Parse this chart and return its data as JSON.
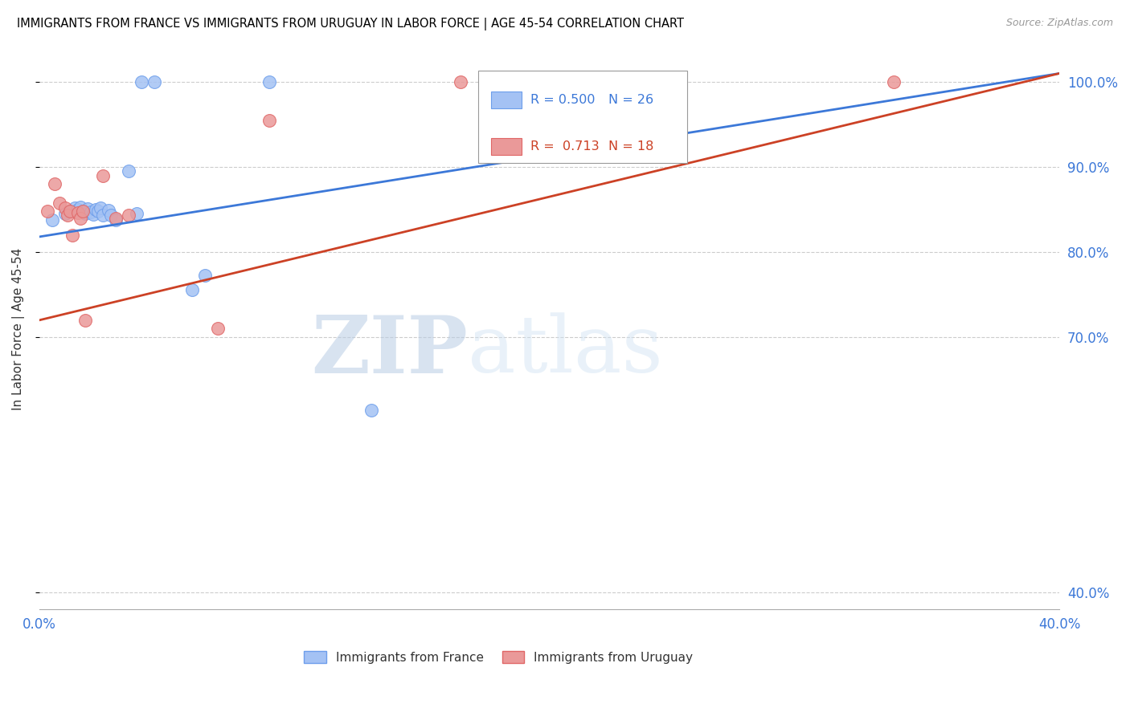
{
  "title": "IMMIGRANTS FROM FRANCE VS IMMIGRANTS FROM URUGUAY IN LABOR FORCE | AGE 45-54 CORRELATION CHART",
  "source": "Source: ZipAtlas.com",
  "ylabel": "In Labor Force | Age 45-54",
  "right_yticks": [
    0.4,
    0.7,
    0.8,
    0.9,
    1.0
  ],
  "right_yticklabels": [
    "40.0%",
    "70.0%",
    "80.0%",
    "90.0%",
    "100.0%"
  ],
  "xlim": [
    0.0,
    0.4
  ],
  "ylim": [
    0.38,
    1.04
  ],
  "france_R": 0.5,
  "france_N": 26,
  "uruguay_R": 0.713,
  "uruguay_N": 18,
  "france_color": "#a4c2f4",
  "uruguay_color": "#ea9999",
  "france_edge_color": "#6d9eeb",
  "uruguay_edge_color": "#e06666",
  "france_line_color": "#3c78d8",
  "uruguay_line_color": "#cc4125",
  "watermark_zip": "ZIP",
  "watermark_atlas": "atlas",
  "france_scatter_x": [
    0.005,
    0.01,
    0.012,
    0.014,
    0.015,
    0.016,
    0.017,
    0.018,
    0.019,
    0.02,
    0.021,
    0.022,
    0.023,
    0.024,
    0.025,
    0.027,
    0.028,
    0.03,
    0.035,
    0.038,
    0.04,
    0.045,
    0.06,
    0.065,
    0.09,
    0.13
  ],
  "france_scatter_y": [
    0.838,
    0.845,
    0.848,
    0.852,
    0.85,
    0.853,
    0.848,
    0.845,
    0.851,
    0.847,
    0.844,
    0.85,
    0.848,
    0.852,
    0.843,
    0.849,
    0.843,
    0.838,
    0.895,
    0.845,
    1.0,
    1.0,
    0.756,
    0.773,
    1.0,
    0.614
  ],
  "uruguay_scatter_x": [
    0.003,
    0.006,
    0.008,
    0.01,
    0.011,
    0.012,
    0.013,
    0.015,
    0.016,
    0.017,
    0.018,
    0.025,
    0.03,
    0.035,
    0.07,
    0.09,
    0.165,
    0.335
  ],
  "uruguay_scatter_y": [
    0.848,
    0.88,
    0.858,
    0.852,
    0.843,
    0.848,
    0.82,
    0.846,
    0.84,
    0.848,
    0.72,
    0.89,
    0.84,
    0.843,
    0.71,
    0.955,
    1.0,
    1.0
  ],
  "france_trend_x0": 0.0,
  "france_trend_x1": 0.4,
  "france_trend_y0": 0.818,
  "france_trend_y1": 1.01,
  "uruguay_trend_x0": 0.0,
  "uruguay_trend_x1": 0.4,
  "uruguay_trend_y0": 0.72,
  "uruguay_trend_y1": 1.01,
  "background_color": "#ffffff",
  "grid_color": "#cccccc",
  "tick_label_color": "#3c78d8",
  "title_color": "#000000",
  "source_color": "#999999",
  "legend_items": [
    "Immigrants from France",
    "Immigrants from Uruguay"
  ]
}
